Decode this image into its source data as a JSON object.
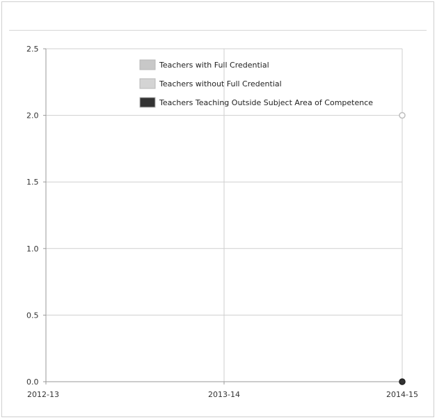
{
  "chart_data": {
    "type": "line",
    "title": "",
    "xlabel": "",
    "ylabel": "",
    "categories": [
      "2012-13",
      "2013-14",
      "2014-15"
    ],
    "y_ticks": [
      "0.0",
      "0.5",
      "1.0",
      "1.5",
      "2.0",
      "2.5"
    ],
    "ylim": [
      0,
      2.5
    ],
    "grid": true,
    "legend_position": "top",
    "series": [
      {
        "name": "Teachers with Full Credential",
        "color": "#c8c8c8",
        "values": [
          null,
          null,
          2
        ]
      },
      {
        "name": "Teachers without Full Credential",
        "color": "#d4d4d4",
        "values": [
          null,
          null,
          0
        ]
      },
      {
        "name": "Teachers Teaching Outside Subject Area of Competence",
        "color": "#333333",
        "values": [
          null,
          null,
          0
        ]
      }
    ]
  }
}
